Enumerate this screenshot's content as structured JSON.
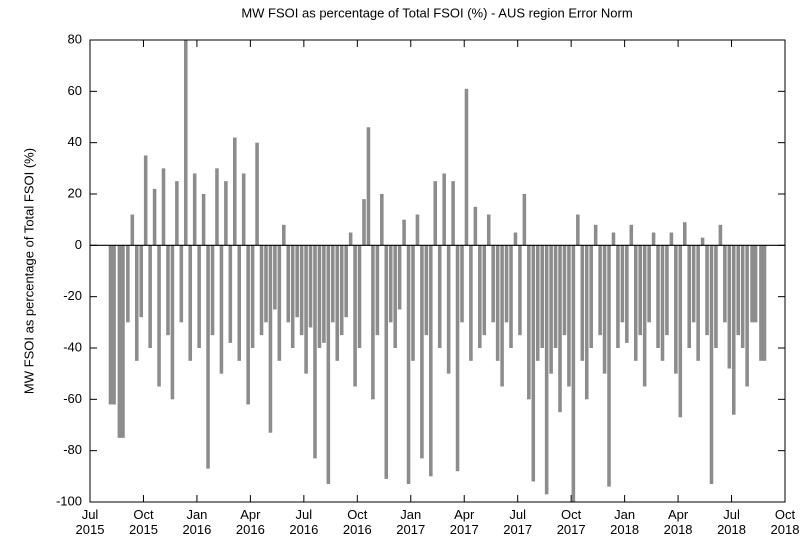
{
  "chart_data": {
    "type": "bar",
    "title": "MW FSOI as percentage of Total FSOI (%) - AUS region Error Norm",
    "y_label": "MW FSOI as percentage of Total FSOI (%)",
    "color": "#8c8c8c",
    "zero_line_color": "#000000",
    "xlim": [
      "2015-07",
      "2018-10"
    ],
    "xticks": [
      {
        "value": "2015-07",
        "label": "Jul 2015"
      },
      {
        "value": "2015-10",
        "label": "Oct 2015"
      },
      {
        "value": "2016-01",
        "label": "Jan 2016"
      },
      {
        "value": "2016-04",
        "label": "Apr 2016"
      },
      {
        "value": "2016-07",
        "label": "Jul 2016"
      },
      {
        "value": "2016-10",
        "label": "Oct 2016"
      },
      {
        "value": "2017-01",
        "label": "Jan 2017"
      },
      {
        "value": "2017-04",
        "label": "Apr 2017"
      },
      {
        "value": "2017-07",
        "label": "Jul 2017"
      },
      {
        "value": "2017-10",
        "label": "Oct 2017"
      },
      {
        "value": "2018-01",
        "label": "Jan 2018"
      },
      {
        "value": "2018-04",
        "label": "Apr 2018"
      },
      {
        "value": "2018-07",
        "label": "Jul 2018"
      },
      {
        "value": "2018-10",
        "label": "Oct 2018"
      }
    ],
    "ylim": [
      -100,
      80
    ],
    "yticks": [
      -100,
      -80,
      -60,
      -40,
      -20,
      0,
      20,
      40,
      60,
      80
    ],
    "x": [
      "2015-08",
      "2015-08",
      "2015-09",
      "2015-09",
      "2015-09",
      "2015-09",
      "2015-10",
      "2015-10",
      "2015-10",
      "2015-10",
      "2015-11",
      "2015-11",
      "2015-11",
      "2015-11",
      "2015-12",
      "2015-12",
      "2015-12",
      "2015-12",
      "2016-01",
      "2016-01",
      "2016-01",
      "2016-01",
      "2016-02",
      "2016-02",
      "2016-02",
      "2016-02",
      "2016-03",
      "2016-03",
      "2016-03",
      "2016-03",
      "2016-04",
      "2016-04",
      "2016-04",
      "2016-04",
      "2016-05",
      "2016-05",
      "2016-05",
      "2016-05",
      "2016-06",
      "2016-06",
      "2016-06",
      "2016-06",
      "2016-07",
      "2016-07",
      "2016-07",
      "2016-07",
      "2016-08",
      "2016-08",
      "2016-08",
      "2016-08",
      "2016-09",
      "2016-09",
      "2016-09",
      "2016-09",
      "2016-10",
      "2016-10",
      "2016-10",
      "2016-10",
      "2016-11",
      "2016-11",
      "2016-11",
      "2016-11",
      "2016-12",
      "2016-12",
      "2016-12",
      "2016-12",
      "2017-01",
      "2017-01",
      "2017-01",
      "2017-01",
      "2017-02",
      "2017-02",
      "2017-02",
      "2017-02",
      "2017-03",
      "2017-03",
      "2017-03",
      "2017-03",
      "2017-04",
      "2017-04",
      "2017-04",
      "2017-04",
      "2017-05",
      "2017-05",
      "2017-05",
      "2017-05",
      "2017-06",
      "2017-06",
      "2017-06",
      "2017-06",
      "2017-07",
      "2017-07",
      "2017-07",
      "2017-07",
      "2017-08",
      "2017-08",
      "2017-08",
      "2017-08",
      "2017-09",
      "2017-09",
      "2017-09",
      "2017-09",
      "2017-10",
      "2017-10",
      "2017-10",
      "2017-10",
      "2017-11",
      "2017-11",
      "2017-11",
      "2017-11",
      "2017-12",
      "2017-12",
      "2017-12",
      "2017-12",
      "2018-01",
      "2018-01",
      "2018-01",
      "2018-01",
      "2018-02",
      "2018-02",
      "2018-02",
      "2018-02",
      "2018-03",
      "2018-03",
      "2018-03",
      "2018-03",
      "2018-04",
      "2018-04",
      "2018-04",
      "2018-04",
      "2018-05",
      "2018-05",
      "2018-05",
      "2018-05",
      "2018-06",
      "2018-06",
      "2018-06",
      "2018-06",
      "2018-07",
      "2018-07",
      "2018-07",
      "2018-07",
      "2018-08",
      "2018-08"
    ],
    "values": [
      -62,
      -75,
      -30,
      12,
      -45,
      -28,
      35,
      -40,
      22,
      -55,
      30,
      -35,
      -60,
      25,
      -30,
      80,
      -45,
      28,
      -40,
      20,
      -87,
      -35,
      30,
      -50,
      25,
      -38,
      42,
      -45,
      28,
      -62,
      -40,
      40,
      -35,
      -30,
      -73,
      -25,
      -45,
      8,
      -30,
      -40,
      -28,
      -35,
      -50,
      -32,
      -83,
      -40,
      -38,
      -93,
      -30,
      -45,
      -35,
      -28,
      5,
      -55,
      -40,
      18,
      46,
      -60,
      -35,
      20,
      -91,
      -30,
      -40,
      -25,
      10,
      -93,
      -45,
      12,
      -83,
      -35,
      -90,
      25,
      -40,
      28,
      -50,
      25,
      -88,
      -30,
      61,
      -45,
      15,
      -40,
      -35,
      12,
      -30,
      -45,
      -55,
      -30,
      -40,
      5,
      -35,
      20,
      -60,
      -92,
      -45,
      -40,
      -97,
      -50,
      -40,
      -65,
      -35,
      -55,
      -100,
      12,
      -45,
      -60,
      -40,
      8,
      -35,
      -50,
      -94,
      5,
      -40,
      -30,
      -38,
      8,
      -45,
      -35,
      -55,
      -30,
      5,
      -40,
      -45,
      -35,
      5,
      -50,
      -67,
      9,
      -40,
      -30,
      -45,
      3,
      -35,
      -93,
      -40,
      8,
      -30,
      -48,
      -66,
      -35,
      -40,
      -55,
      -30,
      -45
    ]
  }
}
